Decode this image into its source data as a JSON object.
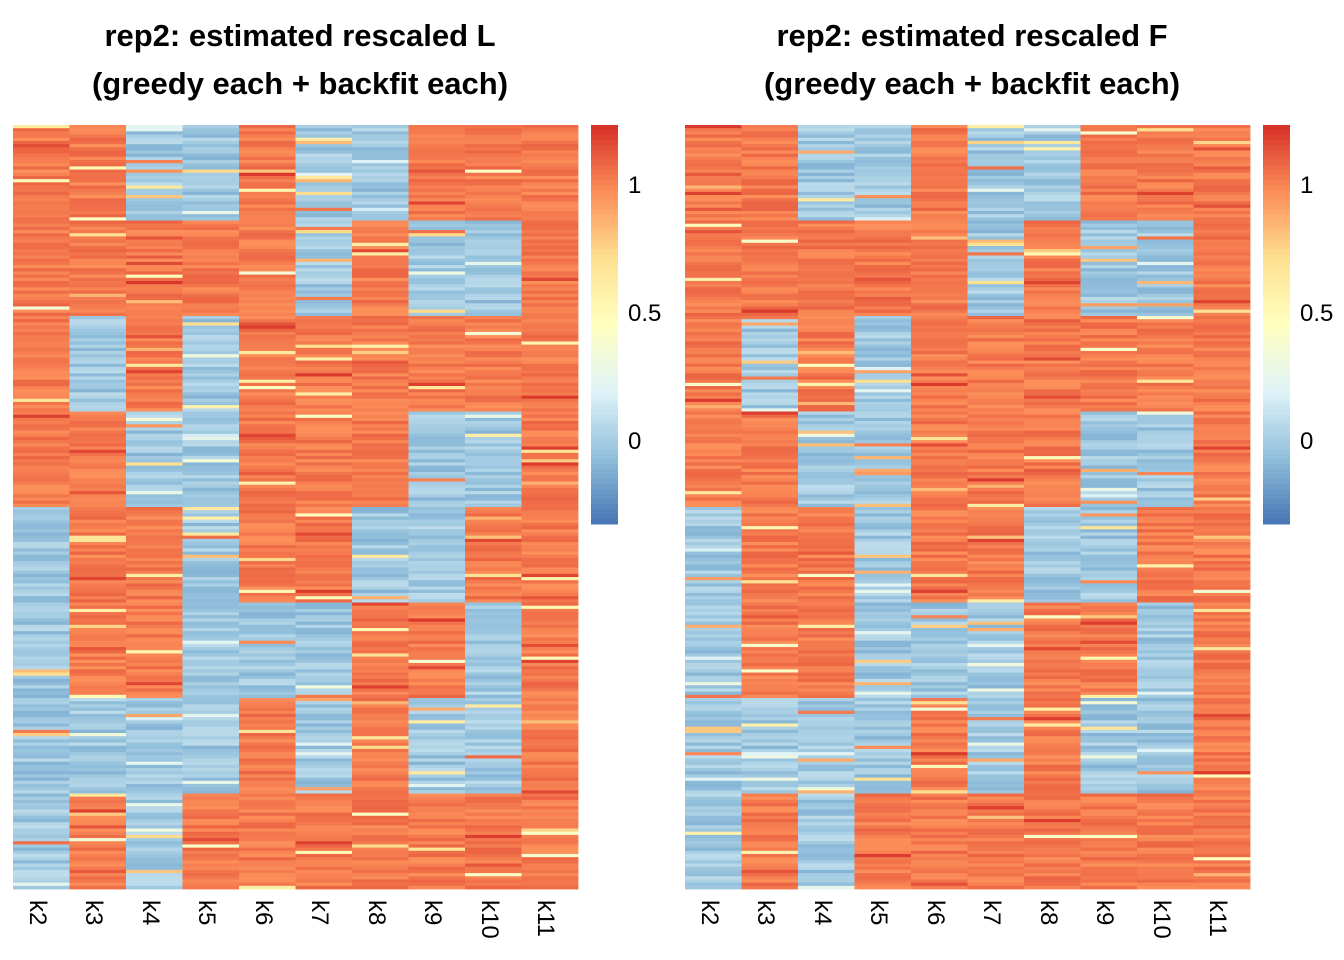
{
  "chart_data": [
    {
      "type": "heatmap",
      "title_line1": "rep2: estimated rescaled L",
      "title_line2": "(greedy each + backfit each)",
      "columns": [
        "k2",
        "k3",
        "k4",
        "k5",
        "k6",
        "k7",
        "k8",
        "k9",
        "k10",
        "k11"
      ],
      "row_blocks": 8,
      "block_pattern": [
        [
          1,
          1,
          0,
          0,
          1,
          0,
          0,
          1,
          1,
          1
        ],
        [
          1,
          1,
          1,
          1,
          1,
          0,
          1,
          0,
          0,
          1
        ],
        [
          1,
          0,
          1,
          0,
          1,
          1,
          1,
          1,
          1,
          1
        ],
        [
          1,
          1,
          0,
          0,
          1,
          1,
          1,
          0,
          0,
          1
        ],
        [
          0,
          1,
          1,
          0,
          1,
          1,
          0,
          0,
          1,
          1
        ],
        [
          0,
          1,
          1,
          0,
          0,
          0,
          1,
          1,
          0,
          1
        ],
        [
          0,
          0,
          0,
          0,
          1,
          0,
          1,
          0,
          0,
          1
        ],
        [
          0,
          1,
          0,
          1,
          1,
          1,
          1,
          1,
          1,
          1
        ]
      ],
      "color_scale": {
        "min": -0.3,
        "max": 1.2,
        "ticks": [
          0,
          0.5,
          1
        ],
        "tick_labels": [
          "0",
          "0.5",
          "1"
        ],
        "colors": [
          "#4575b4",
          "#91bfdb",
          "#e0f3f8",
          "#ffffbf",
          "#fee090",
          "#fc8d59",
          "#d73027"
        ]
      },
      "high_value": 1.0,
      "low_value": 0.0
    },
    {
      "type": "heatmap",
      "title_line1": "rep2: estimated rescaled F",
      "title_line2": "(greedy each + backfit each)",
      "columns": [
        "k2",
        "k3",
        "k4",
        "k5",
        "k6",
        "k7",
        "k8",
        "k9",
        "k10",
        "k11"
      ],
      "row_blocks": 8,
      "block_pattern": [
        [
          1,
          1,
          0,
          0,
          1,
          0,
          0,
          1,
          1,
          1
        ],
        [
          1,
          1,
          1,
          1,
          1,
          0,
          1,
          0,
          0,
          1
        ],
        [
          1,
          0,
          1,
          0,
          1,
          1,
          1,
          1,
          1,
          1
        ],
        [
          1,
          1,
          0,
          0,
          1,
          1,
          1,
          0,
          0,
          1
        ],
        [
          0,
          1,
          1,
          0,
          1,
          1,
          0,
          0,
          1,
          1
        ],
        [
          0,
          1,
          1,
          0,
          0,
          0,
          1,
          1,
          0,
          1
        ],
        [
          0,
          0,
          0,
          0,
          1,
          0,
          1,
          0,
          0,
          1
        ],
        [
          0,
          1,
          0,
          1,
          1,
          1,
          1,
          1,
          1,
          1
        ]
      ],
      "color_scale": {
        "min": -0.3,
        "max": 1.2,
        "ticks": [
          0,
          0.5,
          1
        ],
        "tick_labels": [
          "0",
          "0.5",
          "1"
        ],
        "colors": [
          "#4575b4",
          "#91bfdb",
          "#e0f3f8",
          "#ffffbf",
          "#fee090",
          "#fc8d59",
          "#d73027"
        ]
      },
      "high_value": 1.0,
      "low_value": 0.0
    }
  ]
}
